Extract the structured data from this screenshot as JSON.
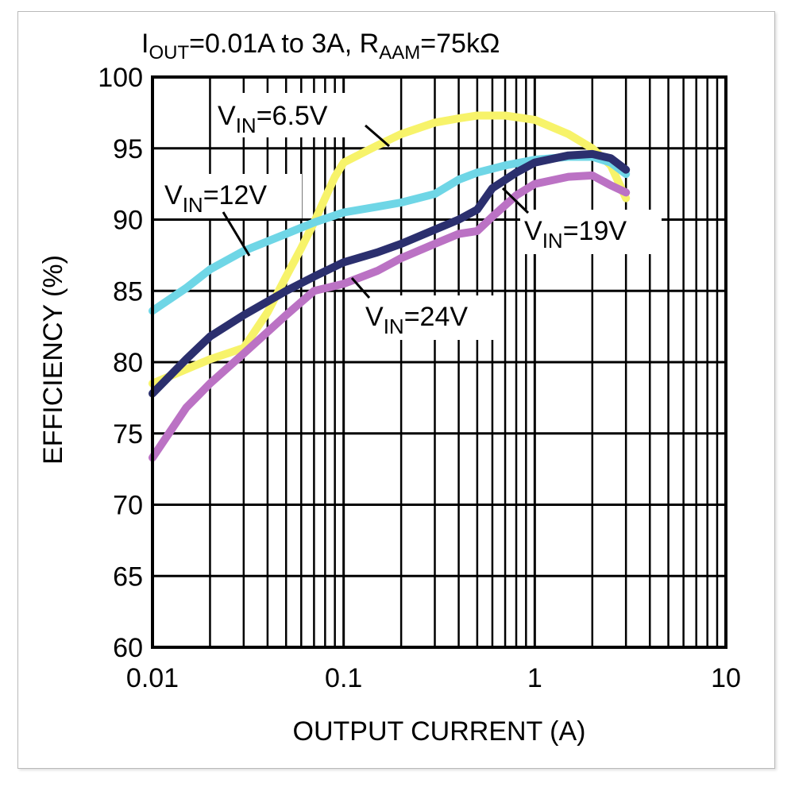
{
  "chart_data": {
    "type": "line",
    "title": {
      "pre": "I",
      "sub1": "OUT",
      "mid": "=0.01A to 3A, R",
      "sub2": "AAM",
      "post": "=75kΩ"
    },
    "xlabel": "OUTPUT CURRENT (A)",
    "ylabel": "EFFICIENCY (%)",
    "x_scale": "log",
    "xlim": [
      0.01,
      10
    ],
    "ylim": [
      60,
      100
    ],
    "x_ticks": [
      0.01,
      0.1,
      1,
      10
    ],
    "x_tick_labels": [
      "0.01",
      "0.1",
      "1",
      "10"
    ],
    "y_ticks": [
      60,
      65,
      70,
      75,
      80,
      85,
      90,
      95,
      100
    ],
    "y_tick_labels": [
      "60",
      "65",
      "70",
      "75",
      "80",
      "85",
      "90",
      "95",
      "100"
    ],
    "grid": true,
    "series": [
      {
        "name": "VIN=6.5V",
        "label_main": "V",
        "label_sub": "IN",
        "label_rest": "=6.5V",
        "color": "#f7f36a",
        "points": [
          [
            0.01,
            78.5
          ],
          [
            0.015,
            79.5
          ],
          [
            0.02,
            80.2
          ],
          [
            0.03,
            81.0
          ],
          [
            0.04,
            83.5
          ],
          [
            0.05,
            86.0
          ],
          [
            0.06,
            88.0
          ],
          [
            0.07,
            89.8
          ],
          [
            0.08,
            91.5
          ],
          [
            0.09,
            93.0
          ],
          [
            0.1,
            94.0
          ],
          [
            0.15,
            95.2
          ],
          [
            0.2,
            96.0
          ],
          [
            0.3,
            96.8
          ],
          [
            0.4,
            97.1
          ],
          [
            0.5,
            97.3
          ],
          [
            0.7,
            97.3
          ],
          [
            1.0,
            97.0
          ],
          [
            1.5,
            96.0
          ],
          [
            2.0,
            95.0
          ],
          [
            2.5,
            93.8
          ],
          [
            3.0,
            91.5
          ]
        ]
      },
      {
        "name": "VIN=12V",
        "label_main": "V",
        "label_sub": "IN",
        "label_rest": "=12V",
        "color": "#6fd6e6",
        "points": [
          [
            0.01,
            83.6
          ],
          [
            0.015,
            85.2
          ],
          [
            0.02,
            86.5
          ],
          [
            0.03,
            87.8
          ],
          [
            0.05,
            89.0
          ],
          [
            0.07,
            89.8
          ],
          [
            0.1,
            90.5
          ],
          [
            0.15,
            90.9
          ],
          [
            0.2,
            91.2
          ],
          [
            0.3,
            91.8
          ],
          [
            0.4,
            92.8
          ],
          [
            0.5,
            93.3
          ],
          [
            0.7,
            93.8
          ],
          [
            1.0,
            94.2
          ],
          [
            1.5,
            94.4
          ],
          [
            2.0,
            94.4
          ],
          [
            2.5,
            94.0
          ],
          [
            3.0,
            93.2
          ]
        ]
      },
      {
        "name": "VIN=19V",
        "label_main": "V",
        "label_sub": "IN",
        "label_rest": "=19V",
        "color": "#2b2f6e",
        "points": [
          [
            0.01,
            77.8
          ],
          [
            0.015,
            80.2
          ],
          [
            0.02,
            81.8
          ],
          [
            0.03,
            83.3
          ],
          [
            0.05,
            85.0
          ],
          [
            0.07,
            86.0
          ],
          [
            0.1,
            87.0
          ],
          [
            0.15,
            87.7
          ],
          [
            0.2,
            88.3
          ],
          [
            0.3,
            89.3
          ],
          [
            0.4,
            90.0
          ],
          [
            0.5,
            90.7
          ],
          [
            0.6,
            92.2
          ],
          [
            0.8,
            93.3
          ],
          [
            1.0,
            94.0
          ],
          [
            1.5,
            94.5
          ],
          [
            2.0,
            94.6
          ],
          [
            2.5,
            94.3
          ],
          [
            3.0,
            93.5
          ]
        ]
      },
      {
        "name": "VIN=24V",
        "label_main": "V",
        "label_sub": "IN",
        "label_rest": "=24V",
        "color": "#bb72c4",
        "points": [
          [
            0.01,
            73.3
          ],
          [
            0.015,
            76.8
          ],
          [
            0.02,
            78.5
          ],
          [
            0.03,
            80.6
          ],
          [
            0.05,
            83.3
          ],
          [
            0.07,
            85.0
          ],
          [
            0.1,
            85.5
          ],
          [
            0.15,
            86.4
          ],
          [
            0.2,
            87.3
          ],
          [
            0.3,
            88.3
          ],
          [
            0.4,
            89.0
          ],
          [
            0.5,
            89.2
          ],
          [
            0.6,
            90.2
          ],
          [
            0.8,
            91.7
          ],
          [
            1.0,
            92.5
          ],
          [
            1.5,
            93.0
          ],
          [
            2.0,
            93.1
          ],
          [
            2.5,
            92.4
          ],
          [
            3.0,
            91.9
          ]
        ]
      }
    ]
  }
}
